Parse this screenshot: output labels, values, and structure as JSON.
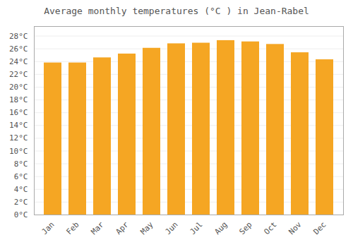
{
  "chart_data": {
    "type": "bar",
    "title": "Average monthly temperatures (°C ) in Jean-Rabel",
    "categories": [
      "Jan",
      "Feb",
      "Mar",
      "Apr",
      "May",
      "Jun",
      "Jul",
      "Aug",
      "Sep",
      "Oct",
      "Nov",
      "Dec"
    ],
    "values": [
      23.8,
      23.8,
      24.6,
      25.2,
      26.1,
      26.8,
      26.9,
      27.3,
      27.1,
      26.7,
      25.4,
      24.3
    ],
    "color": "#F5A623",
    "ylim": [
      0,
      29.5
    ],
    "yticks": [
      {
        "value": 0,
        "label": "0°C"
      },
      {
        "value": 2,
        "label": "2°C"
      },
      {
        "value": 4,
        "label": "4°C"
      },
      {
        "value": 6,
        "label": "6°C"
      },
      {
        "value": 8,
        "label": "8°C"
      },
      {
        "value": 10,
        "label": "10°C"
      },
      {
        "value": 12,
        "label": "12°C"
      },
      {
        "value": 14,
        "label": "14°C"
      },
      {
        "value": 16,
        "label": "16°C"
      },
      {
        "value": 18,
        "label": "18°C"
      },
      {
        "value": 20,
        "label": "20°C"
      },
      {
        "value": 22,
        "label": "22°C"
      },
      {
        "value": 24,
        "label": "24°C"
      },
      {
        "value": 26,
        "label": "26°C"
      },
      {
        "value": 28,
        "label": "28°C"
      }
    ],
    "grid": true
  }
}
